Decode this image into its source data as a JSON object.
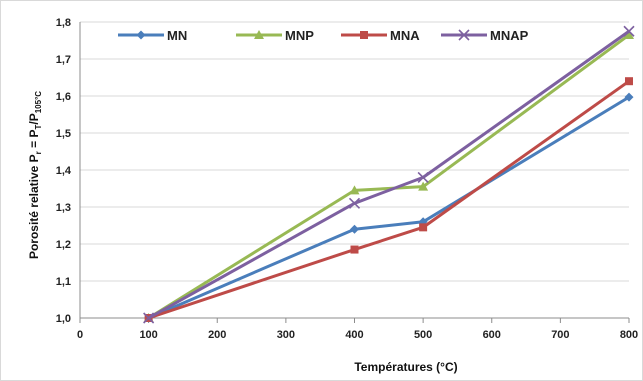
{
  "chart_data": {
    "type": "line",
    "xlabel": "Températures (°C)",
    "ylabel": {
      "main": "Porosité relative P",
      "r_sub": "r",
      "equals": " = P",
      "t_sub": "T",
      "slash": "/P",
      "ref_sub": "105°C"
    },
    "xlim": [
      0,
      800
    ],
    "ylim": [
      1.0,
      1.8
    ],
    "x_ticks": [
      "0",
      "100",
      "200",
      "300",
      "400",
      "500",
      "600",
      "700",
      "800"
    ],
    "y_ticks": [
      "1,0",
      "1,1",
      "1,2",
      "1,3",
      "1,4",
      "1,5",
      "1,6",
      "1,7",
      "1,8"
    ],
    "grid": "horizontal",
    "legend_position": "top",
    "series": [
      {
        "name": "MN",
        "color": "#4A7EBB",
        "marker": "diamond",
        "x": [
          100,
          400,
          500,
          800
        ],
        "y": [
          1.0,
          1.24,
          1.26,
          1.597
        ]
      },
      {
        "name": "MNP",
        "color": "#98B954",
        "marker": "triangle",
        "x": [
          100,
          400,
          500,
          800
        ],
        "y": [
          1.0,
          1.345,
          1.355,
          1.765
        ]
      },
      {
        "name": "MNA",
        "color": "#BE4B48",
        "marker": "square",
        "x": [
          100,
          400,
          500,
          800
        ],
        "y": [
          1.0,
          1.185,
          1.245,
          1.64
        ]
      },
      {
        "name": "MNAP",
        "color": "#7D60A0",
        "marker": "x",
        "x": [
          100,
          400,
          500,
          800
        ],
        "y": [
          1.0,
          1.31,
          1.38,
          1.775
        ]
      }
    ]
  }
}
